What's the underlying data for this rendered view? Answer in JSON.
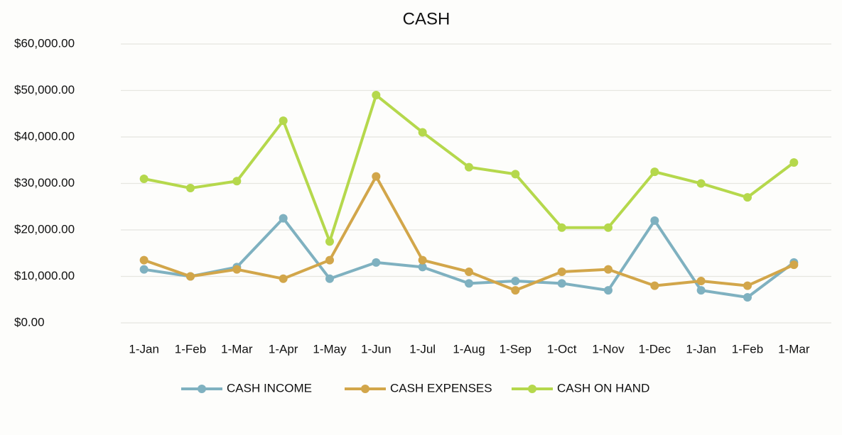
{
  "chart_data": {
    "type": "line",
    "title": "CASH",
    "categories": [
      "1-Jan",
      "1-Feb",
      "1-Mar",
      "1-Apr",
      "1-May",
      "1-Jun",
      "1-Jul",
      "1-Aug",
      "1-Sep",
      "1-Oct",
      "1-Nov",
      "1-Dec",
      "1-Jan",
      "1-Feb",
      "1-Mar"
    ],
    "series": [
      {
        "name": "CASH INCOME",
        "color": "#7fb1c0",
        "values": [
          11500,
          10000,
          12000,
          22500,
          9500,
          13000,
          12000,
          8500,
          9000,
          8500,
          7000,
          22000,
          7000,
          5500,
          13000
        ]
      },
      {
        "name": "CASH EXPENSES",
        "color": "#d2a64a",
        "values": [
          13500,
          10000,
          11500,
          9500,
          13500,
          31500,
          13500,
          11000,
          7000,
          11000,
          11500,
          8000,
          9000,
          8000,
          12500
        ]
      },
      {
        "name": "CASH ON HAND",
        "color": "#b5d84c",
        "values": [
          31000,
          29000,
          30500,
          43500,
          17500,
          49000,
          41000,
          33500,
          32000,
          20500,
          20500,
          32500,
          30000,
          27000,
          34500
        ]
      }
    ],
    "ylim": [
      0,
      60000
    ],
    "yticks": [
      {
        "value": 0,
        "label": "$0.00"
      },
      {
        "value": 10000,
        "label": "$10,000.00"
      },
      {
        "value": 20000,
        "label": "$20,000.00"
      },
      {
        "value": 30000,
        "label": "$30,000.00"
      },
      {
        "value": 40000,
        "label": "$40,000.00"
      },
      {
        "value": 50000,
        "label": "$50,000.00"
      },
      {
        "value": 60000,
        "label": "$60,000.00"
      }
    ],
    "grid": true,
    "legend": "bottom"
  }
}
